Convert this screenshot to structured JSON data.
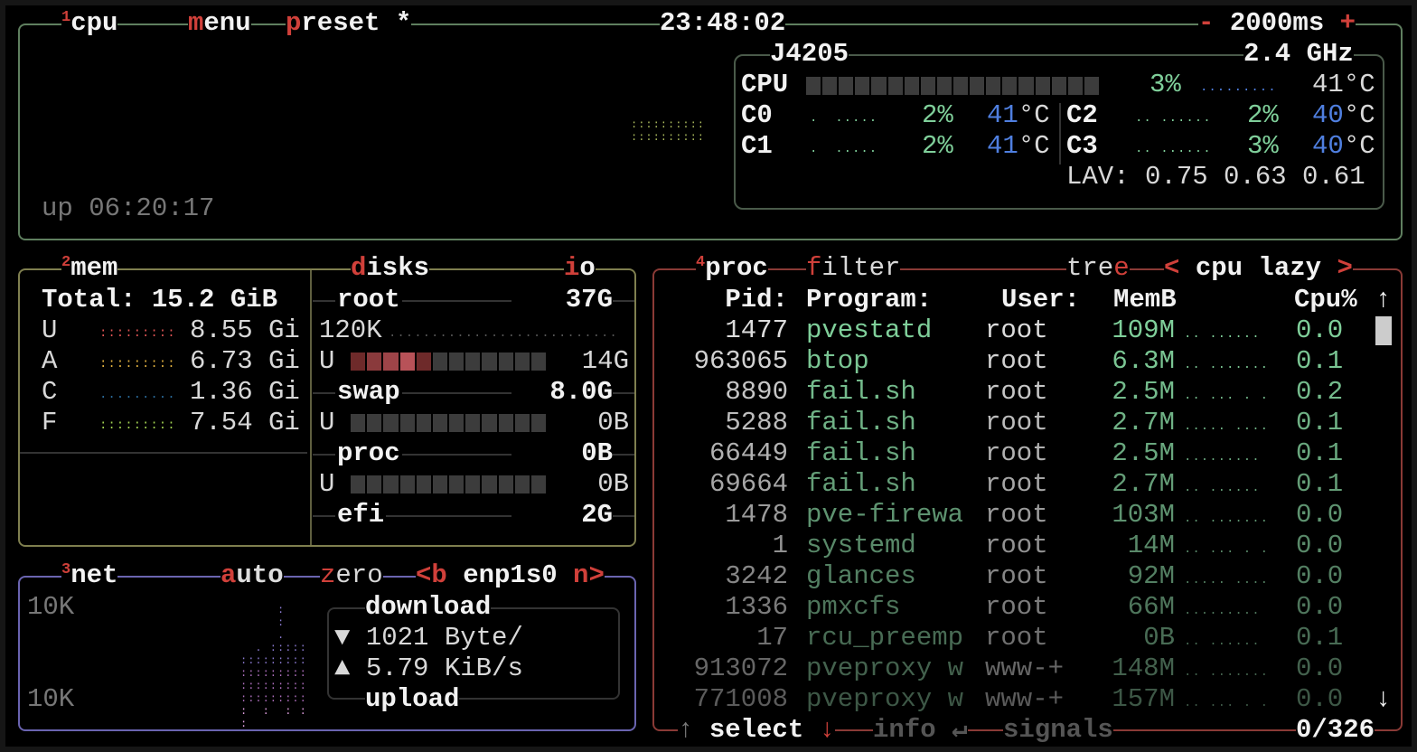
{
  "cpu_box": {
    "number": "1",
    "title": "cpu",
    "menu_hot": "m",
    "menu_rest": "enu",
    "preset_hot": "p",
    "preset_rest": "reset *",
    "clock": "23:48:02",
    "minus": "-",
    "interval": "2000ms",
    "plus": "+",
    "uptime": "up 06:20:17",
    "model": "J4205",
    "freq": "2.4 GHz",
    "total": {
      "label": "CPU",
      "percent": "3%",
      "temp": "41°C",
      "load_fraction": 0.03
    },
    "cores": [
      {
        "label": "C0",
        "percent": "2%",
        "temp": "41",
        "unit": "°C"
      },
      {
        "label": "C1",
        "percent": "2%",
        "temp": "41",
        "unit": "°C"
      },
      {
        "label": "C2",
        "percent": "2%",
        "temp": "40",
        "unit": "°C"
      },
      {
        "label": "C3",
        "percent": "3%",
        "temp": "40",
        "unit": "°C"
      }
    ],
    "lav_label": "LAV:",
    "lav": "0.75 0.63 0.61"
  },
  "mem_box": {
    "number": "2",
    "title": "mem",
    "total": "Total: 15.2 GiB",
    "rows": [
      {
        "label": "U",
        "value": "8.55 Gi",
        "color": "#e05555"
      },
      {
        "label": "A",
        "value": "6.73 Gi",
        "color": "#e0b040"
      },
      {
        "label": "C",
        "value": "1.36 Gi",
        "color": "#2a6a9a"
      },
      {
        "label": "F",
        "value": "7.54 Gi",
        "color": "#a0d050"
      }
    ]
  },
  "disks_box": {
    "title_hot": "d",
    "title_rest": "isks",
    "io_hot": "i",
    "io_rest": "o",
    "io_value": "120K",
    "disks": [
      {
        "name": "root",
        "size": "37G",
        "used_label": "U",
        "used": "14G",
        "used_fraction": 0.38
      },
      {
        "name": "swap",
        "size": "8.0G",
        "used_label": "U",
        "used": "0B",
        "used_fraction": 0
      },
      {
        "name": "proc",
        "size": "0B",
        "used_label": "U",
        "used": "0B",
        "used_fraction": 0
      },
      {
        "name": "efi",
        "size": "2G"
      }
    ]
  },
  "net_box": {
    "number": "3",
    "title": "net",
    "auto_hot": "a",
    "auto_rest": "uto",
    "zero_hot": "z",
    "zero_rest": "ero",
    "prev": "<b",
    "iface": "enp1s0",
    "next": "n>",
    "scale_top": "10K",
    "scale_bottom": "10K",
    "download_label": "download",
    "download_value": "1021 Byte/",
    "upload_label": "upload",
    "upload_value": "5.79 KiB/s",
    "down_arrow": "▼",
    "up_arrow": "▲"
  },
  "proc_box": {
    "number": "4",
    "title": "proc",
    "filter_hot": "f",
    "filter_rest": "ilter",
    "tree_rest": "tre",
    "tree_hot": "e",
    "sort_prev": "<",
    "sort": "cpu lazy",
    "sort_next": ">",
    "headers": {
      "pid": "Pid:",
      "program": "Program:",
      "user": "User:",
      "mem": "MemB",
      "cpu": "Cpu%"
    },
    "rows": [
      {
        "pid": "1477",
        "program": "pvestatd",
        "user": "root",
        "mem": "109M",
        "cpu": "0.0"
      },
      {
        "pid": "963065",
        "program": "btop",
        "user": "root",
        "mem": "6.3M",
        "cpu": "0.1"
      },
      {
        "pid": "8890",
        "program": "fail.sh",
        "user": "root",
        "mem": "2.5M",
        "cpu": "0.2"
      },
      {
        "pid": "5288",
        "program": "fail.sh",
        "user": "root",
        "mem": "2.7M",
        "cpu": "0.1"
      },
      {
        "pid": "66449",
        "program": "fail.sh",
        "user": "root",
        "mem": "2.5M",
        "cpu": "0.1"
      },
      {
        "pid": "69664",
        "program": "fail.sh",
        "user": "root",
        "mem": "2.7M",
        "cpu": "0.1"
      },
      {
        "pid": "1478",
        "program": "pve-firewa",
        "user": "root",
        "mem": "103M",
        "cpu": "0.0"
      },
      {
        "pid": "1",
        "program": "systemd",
        "user": "root",
        "mem": "14M",
        "cpu": "0.0"
      },
      {
        "pid": "3242",
        "program": "glances",
        "user": "root",
        "mem": "92M",
        "cpu": "0.0"
      },
      {
        "pid": "1336",
        "program": "pmxcfs",
        "user": "root",
        "mem": "66M",
        "cpu": "0.0"
      },
      {
        "pid": "17",
        "program": "rcu_preemp",
        "user": "root",
        "mem": "0B",
        "cpu": "0.1"
      },
      {
        "pid": "913072",
        "program": "pveproxy w",
        "user": "www-+",
        "mem": "148M",
        "cpu": "0.0"
      },
      {
        "pid": "771008",
        "program": "pveproxy w",
        "user": "www-+",
        "mem": "157M",
        "cpu": "0.0"
      }
    ],
    "select_up": "↑",
    "select_label": "select",
    "select_down": "↓",
    "info_label": "info",
    "info_icon": "↵",
    "signals_label": "signals",
    "count": "0/326",
    "scroll_up": "↑",
    "scroll_down": "↓"
  },
  "colors": {
    "cpu_border": "#5f7f5f",
    "mem_border": "#7f7f4f",
    "net_border": "#6a64b0",
    "proc_border": "#8a3a36",
    "accent": "#d0403a"
  }
}
